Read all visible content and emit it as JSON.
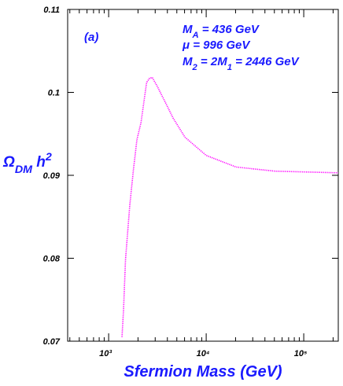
{
  "chart_data": {
    "type": "line",
    "xlabel": "Sfermion Mass (GeV)",
    "ylabel": [
      {
        "text": "Ω"
      },
      {
        "text": "DM",
        "shift": "sub"
      },
      {
        "text": " h"
      },
      {
        "text": "2",
        "shift": "super"
      }
    ],
    "annotations": [
      [
        {
          "text": "(a)"
        }
      ],
      [
        {
          "text": "M"
        },
        {
          "text": "A",
          "shift": "sub"
        },
        {
          "text": " = 436 GeV"
        }
      ],
      [
        {
          "text": "μ   = 996 GeV"
        }
      ],
      [
        {
          "text": "M"
        },
        {
          "text": "2",
          "shift": "sub"
        },
        {
          "text": " = 2M"
        },
        {
          "text": "1",
          "shift": "sub"
        },
        {
          "text": " = 2446 GeV"
        }
      ]
    ],
    "xscale": "log",
    "xlim": [
      380,
      226000
    ],
    "xticks": [
      {
        "value": 1000,
        "label": "10³"
      },
      {
        "value": 10000,
        "label": "10⁴"
      },
      {
        "value": 100000,
        "label": "10⁵"
      }
    ],
    "xminorticks": [
      400,
      500,
      600,
      700,
      800,
      900,
      2000,
      3000,
      4000,
      5000,
      6000,
      7000,
      8000,
      9000,
      20000,
      30000,
      40000,
      50000,
      60000,
      70000,
      80000,
      90000,
      200000
    ],
    "ylim": [
      0.07,
      0.11
    ],
    "yticks": [
      0.07,
      0.08,
      0.09,
      0.1,
      0.11
    ],
    "series": [
      {
        "color": "#ff00ff",
        "x": [
          1370,
          1420,
          1490,
          1650,
          1800,
          1950,
          2150,
          2450,
          2630,
          2800,
          3160,
          3810,
          4580,
          6050,
          10000,
          20200,
          51000,
          226000
        ],
        "values": [
          0.0705,
          0.0737,
          0.0799,
          0.0865,
          0.0908,
          0.0943,
          0.0964,
          0.1012,
          0.1017,
          0.1018,
          0.1007,
          0.0988,
          0.0969,
          0.0946,
          0.0924,
          0.091,
          0.0905,
          0.0903
        ]
      }
    ]
  }
}
